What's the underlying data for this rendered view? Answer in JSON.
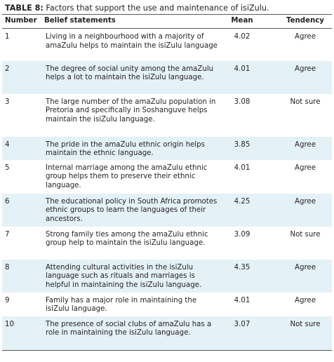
{
  "table": {
    "caption_label": "TABLE 8:",
    "caption_text": " Factors that support the use and maintenance of isiZulu.",
    "headers": {
      "number": "Number",
      "statement": "Belief statements",
      "mean": "Mean",
      "tendency": "Tendency"
    },
    "rows": [
      {
        "number": "1",
        "statement": "Living in a neighbourhood with a majority of amaZulu helps to maintain the isiZulu language",
        "mean": "4.02",
        "tendency": "Agree"
      },
      {
        "number": "2",
        "statement": "The degree of social unity among the amaZulu helps a lot to maintain the isiZulu language.",
        "mean": "4.01",
        "tendency": "Agree"
      },
      {
        "number": "3",
        "statement": "The large number of the amaZulu population in Pretoria and specifically in Soshanguve helps maintain the isiZulu language.",
        "mean": "3.08",
        "tendency": "Not sure"
      },
      {
        "number": "4",
        "statement": "The pride in the amaZulu ethnic origin helps maintain the ethnic language.",
        "mean": "3.85",
        "tendency": "Agree"
      },
      {
        "number": "5",
        "statement": "Internal marriage among the amaZulu ethnic group helps them to preserve their ethnic language.",
        "mean": "4.01",
        "tendency": "Agree"
      },
      {
        "number": "6",
        "statement": "The educational policy in South Africa promotes ethnic groups to learn the languages of their ancestors.",
        "mean": "4.25",
        "tendency": "Agree"
      },
      {
        "number": "7",
        "statement": "Strong family ties among the amaZulu ethnic group help to maintain the isiZulu language.",
        "mean": "3.09",
        "tendency": "Not sure"
      },
      {
        "number": "8",
        "statement": "Attending cultural activities in the isiZulu language such as rituals and marriages is helpful in maintaining the isiZulu language.",
        "mean": "4.35",
        "tendency": "Agree"
      },
      {
        "number": "9",
        "statement": "Family has a major role in maintaining the isiZulu language.",
        "mean": "4.01",
        "tendency": "Agree"
      },
      {
        "number": "10",
        "statement": "The presence of social clubs of amaZulu has a role in maintaining the isiZulu language.",
        "mean": "3.07",
        "tendency": "Not sure"
      }
    ]
  },
  "colors": {
    "shaded_row": "#e4f1f7",
    "rule": "#58595b",
    "text": "#231f20"
  }
}
